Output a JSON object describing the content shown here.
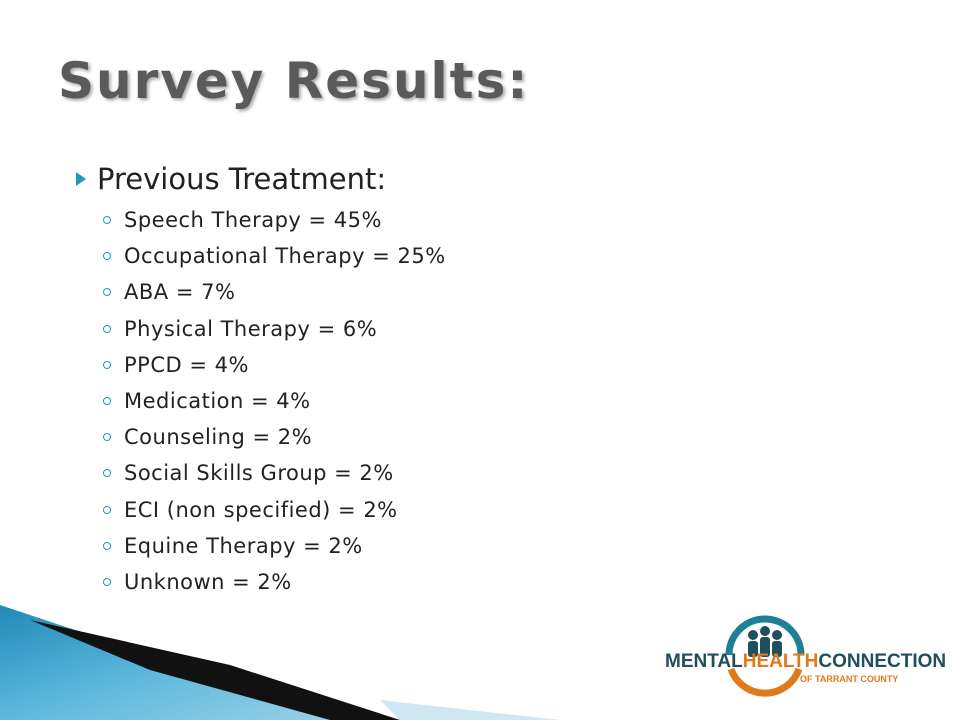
{
  "header": {
    "title": "Survey Results:"
  },
  "section": {
    "heading": "Previous Treatment:",
    "items": [
      "Speech Therapy = 45%",
      "Occupational Therapy = 25%",
      "ABA = 7%",
      "Physical Therapy = 6%",
      "PPCD = 4%",
      "Medication = 4%",
      "Counseling = 2%",
      "Social Skills Group = 2%",
      "ECI (non specified) = 2%",
      "Equine Therapy = 2%",
      "Unknown = 2%"
    ]
  },
  "logo": {
    "parts": [
      "MENTAL",
      "HEALTH",
      "CONNECTION"
    ],
    "subtitle": "OF TARRANT COUNTY"
  }
}
